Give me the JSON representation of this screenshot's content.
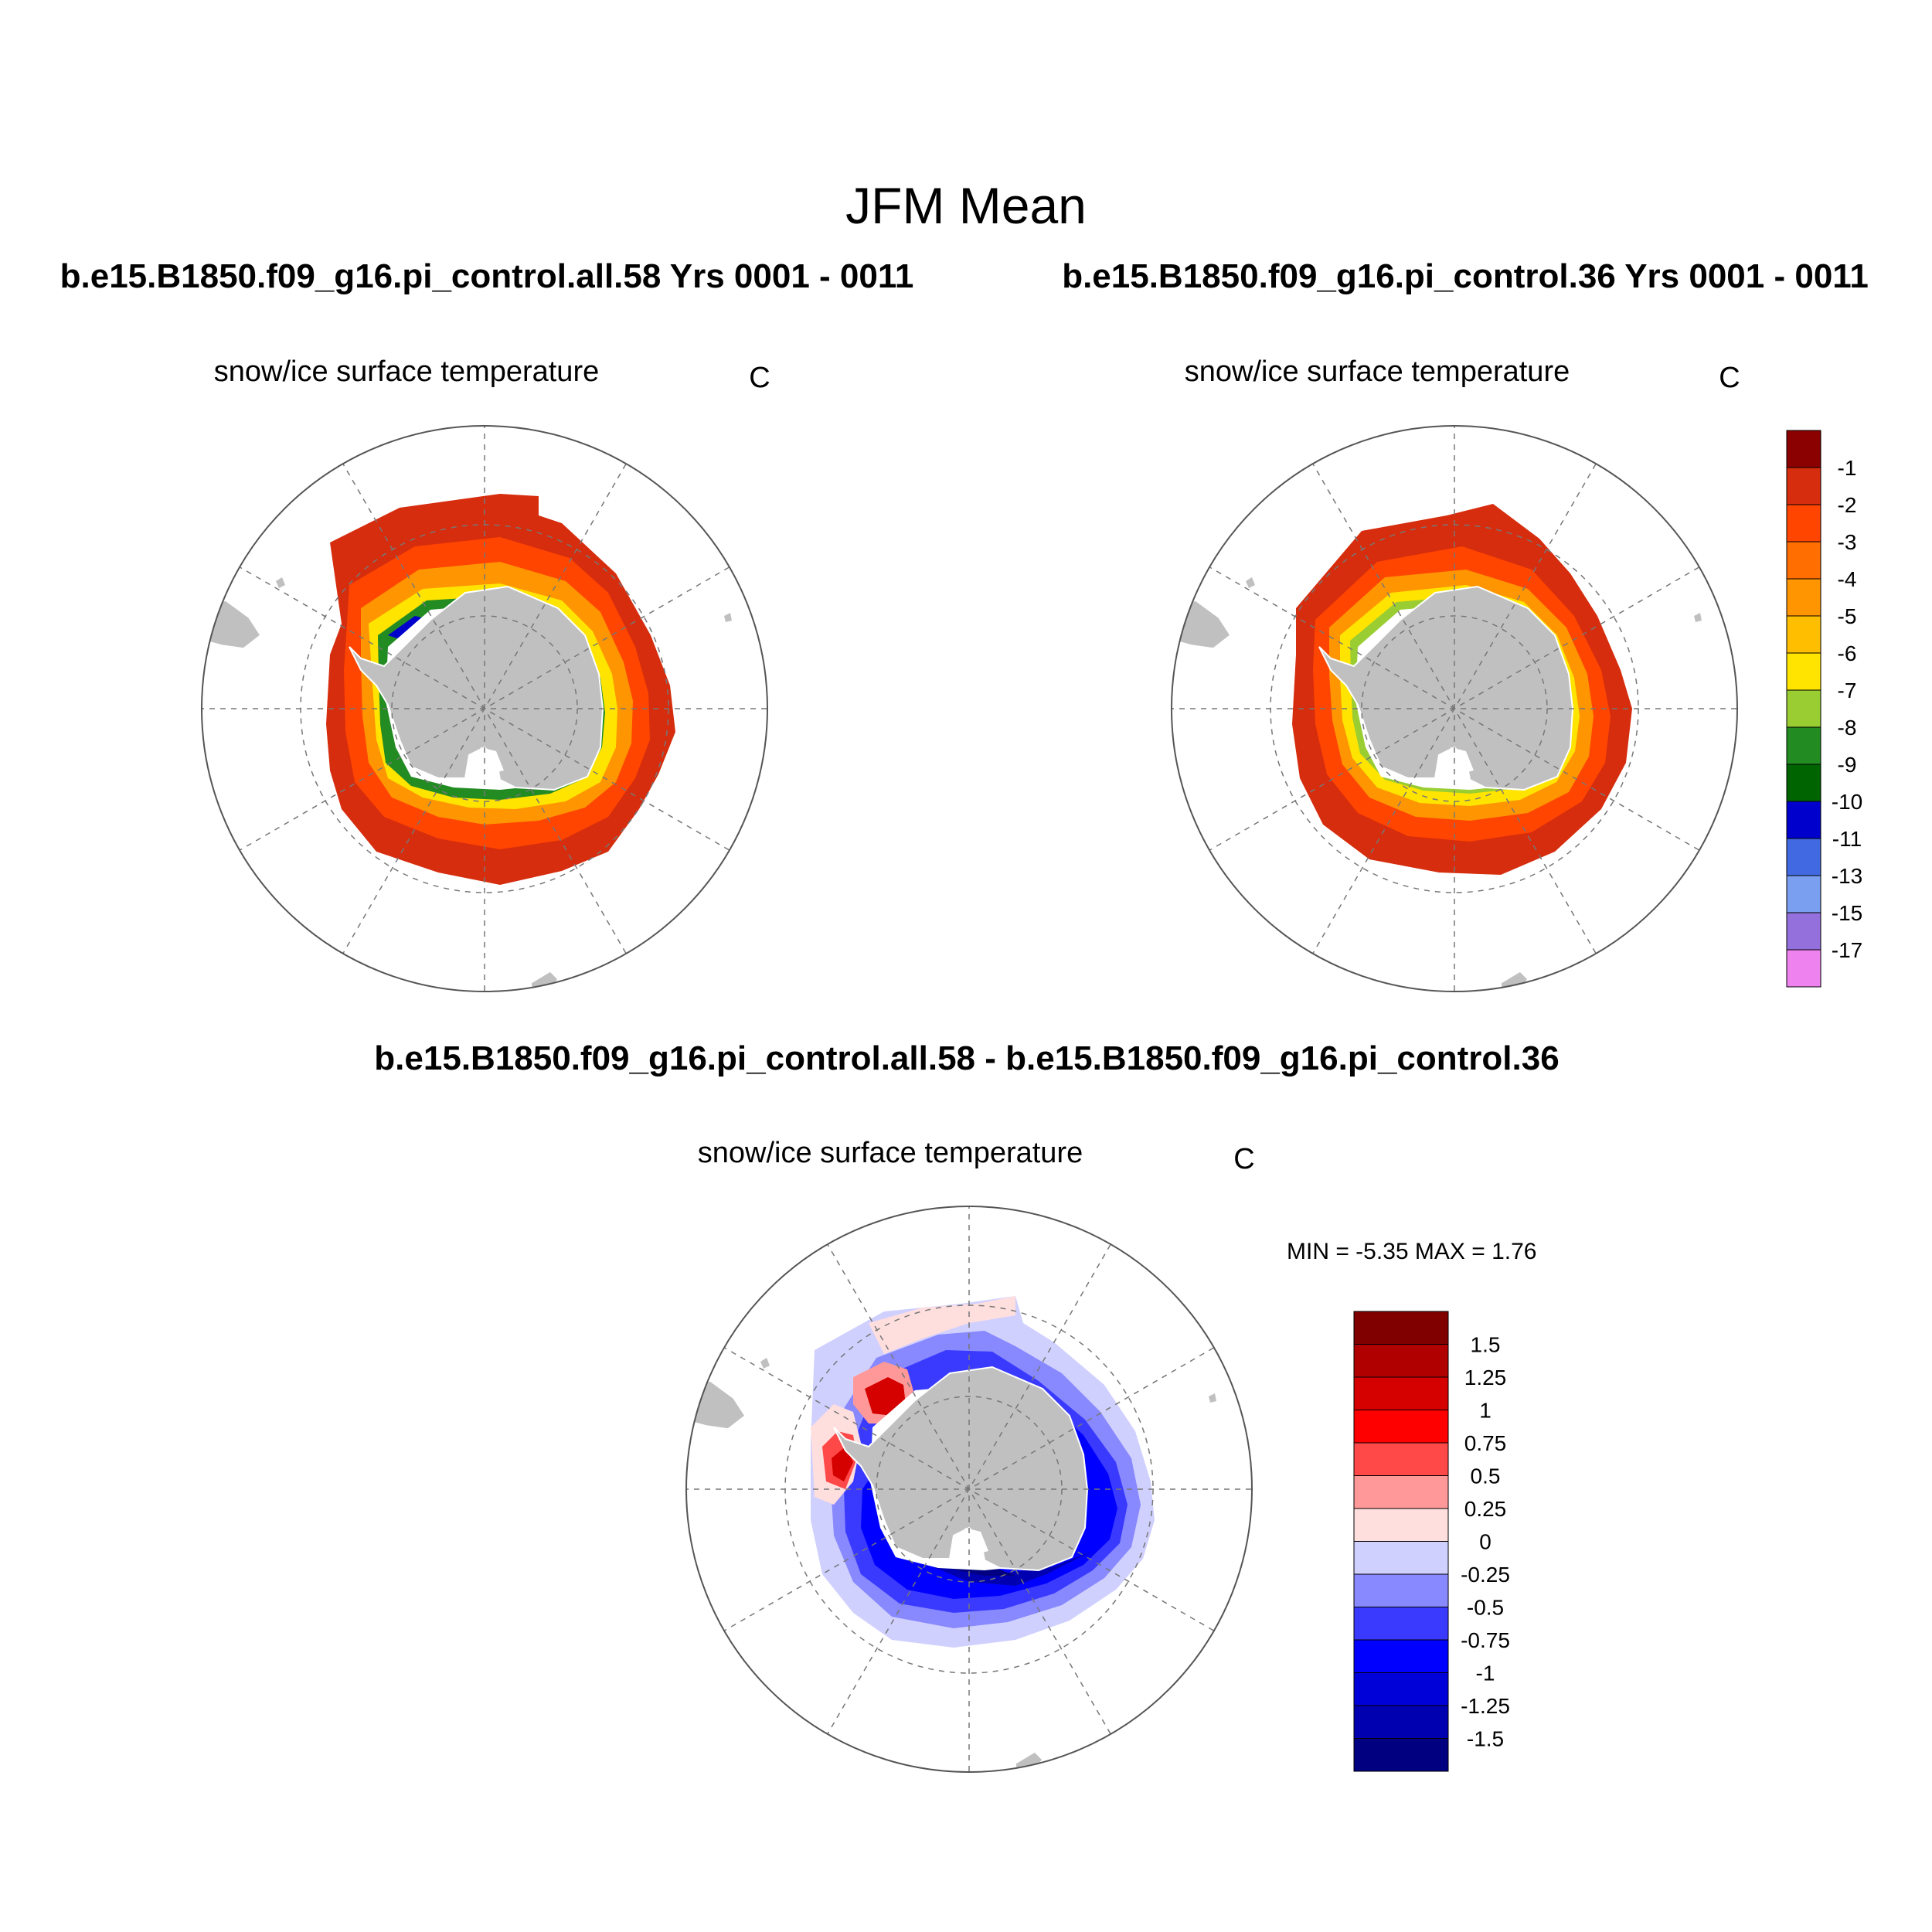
{
  "title": "JFM Mean",
  "panels": [
    {
      "case": "b.e15.B1850.f09_g16.pi_control.all.58  Yrs 0001 - 0011",
      "variable": "snow/ice surface temperature",
      "units": "C"
    },
    {
      "case": "b.e15.B1850.f09_g16.pi_control.36  Yrs 0001 - 0011",
      "variable": "snow/ice surface temperature",
      "units": "C"
    },
    {
      "case": "b.e15.B1850.f09_g16.pi_control.all.58 - b.e15.B1850.f09_g16.pi_control.36",
      "variable": "snow/ice surface temperature",
      "units": "C",
      "minmax": "MIN =  -5.35 MAX =   1.76"
    }
  ],
  "colorbar_mean": {
    "labels": [
      "-1",
      "-2",
      "-3",
      "-4",
      "-5",
      "-6",
      "-7",
      "-8",
      "-9",
      "-10",
      "-11",
      "-13",
      "-15",
      "-17"
    ],
    "colors": [
      "#8b0000",
      "#d62d0e",
      "#ff4500",
      "#ff6e00",
      "#ff9500",
      "#ffbf00",
      "#ffe400",
      "#9acd32",
      "#228b22",
      "#006400",
      "#0000cd",
      "#4169e1",
      "#7a9ef0",
      "#9370db",
      "#ee82ee"
    ]
  },
  "colorbar_diff": {
    "labels": [
      "1.5",
      "1.25",
      "1",
      "0.75",
      "0.5",
      "0.25",
      "0",
      "-0.25",
      "-0.5",
      "-0.75",
      "-1",
      "-1.25",
      "-1.5"
    ],
    "colors": [
      "#800000",
      "#b00000",
      "#d50000",
      "#ff0000",
      "#ff4848",
      "#ff9999",
      "#ffdede",
      "#d0d0ff",
      "#8888ff",
      "#3a3aff",
      "#0000ff",
      "#0000d8",
      "#0000b0",
      "#000080"
    ]
  },
  "map_colors": {
    "land": "#c0c0c0",
    "coast": "#ffffff",
    "grid": "#777777"
  }
}
